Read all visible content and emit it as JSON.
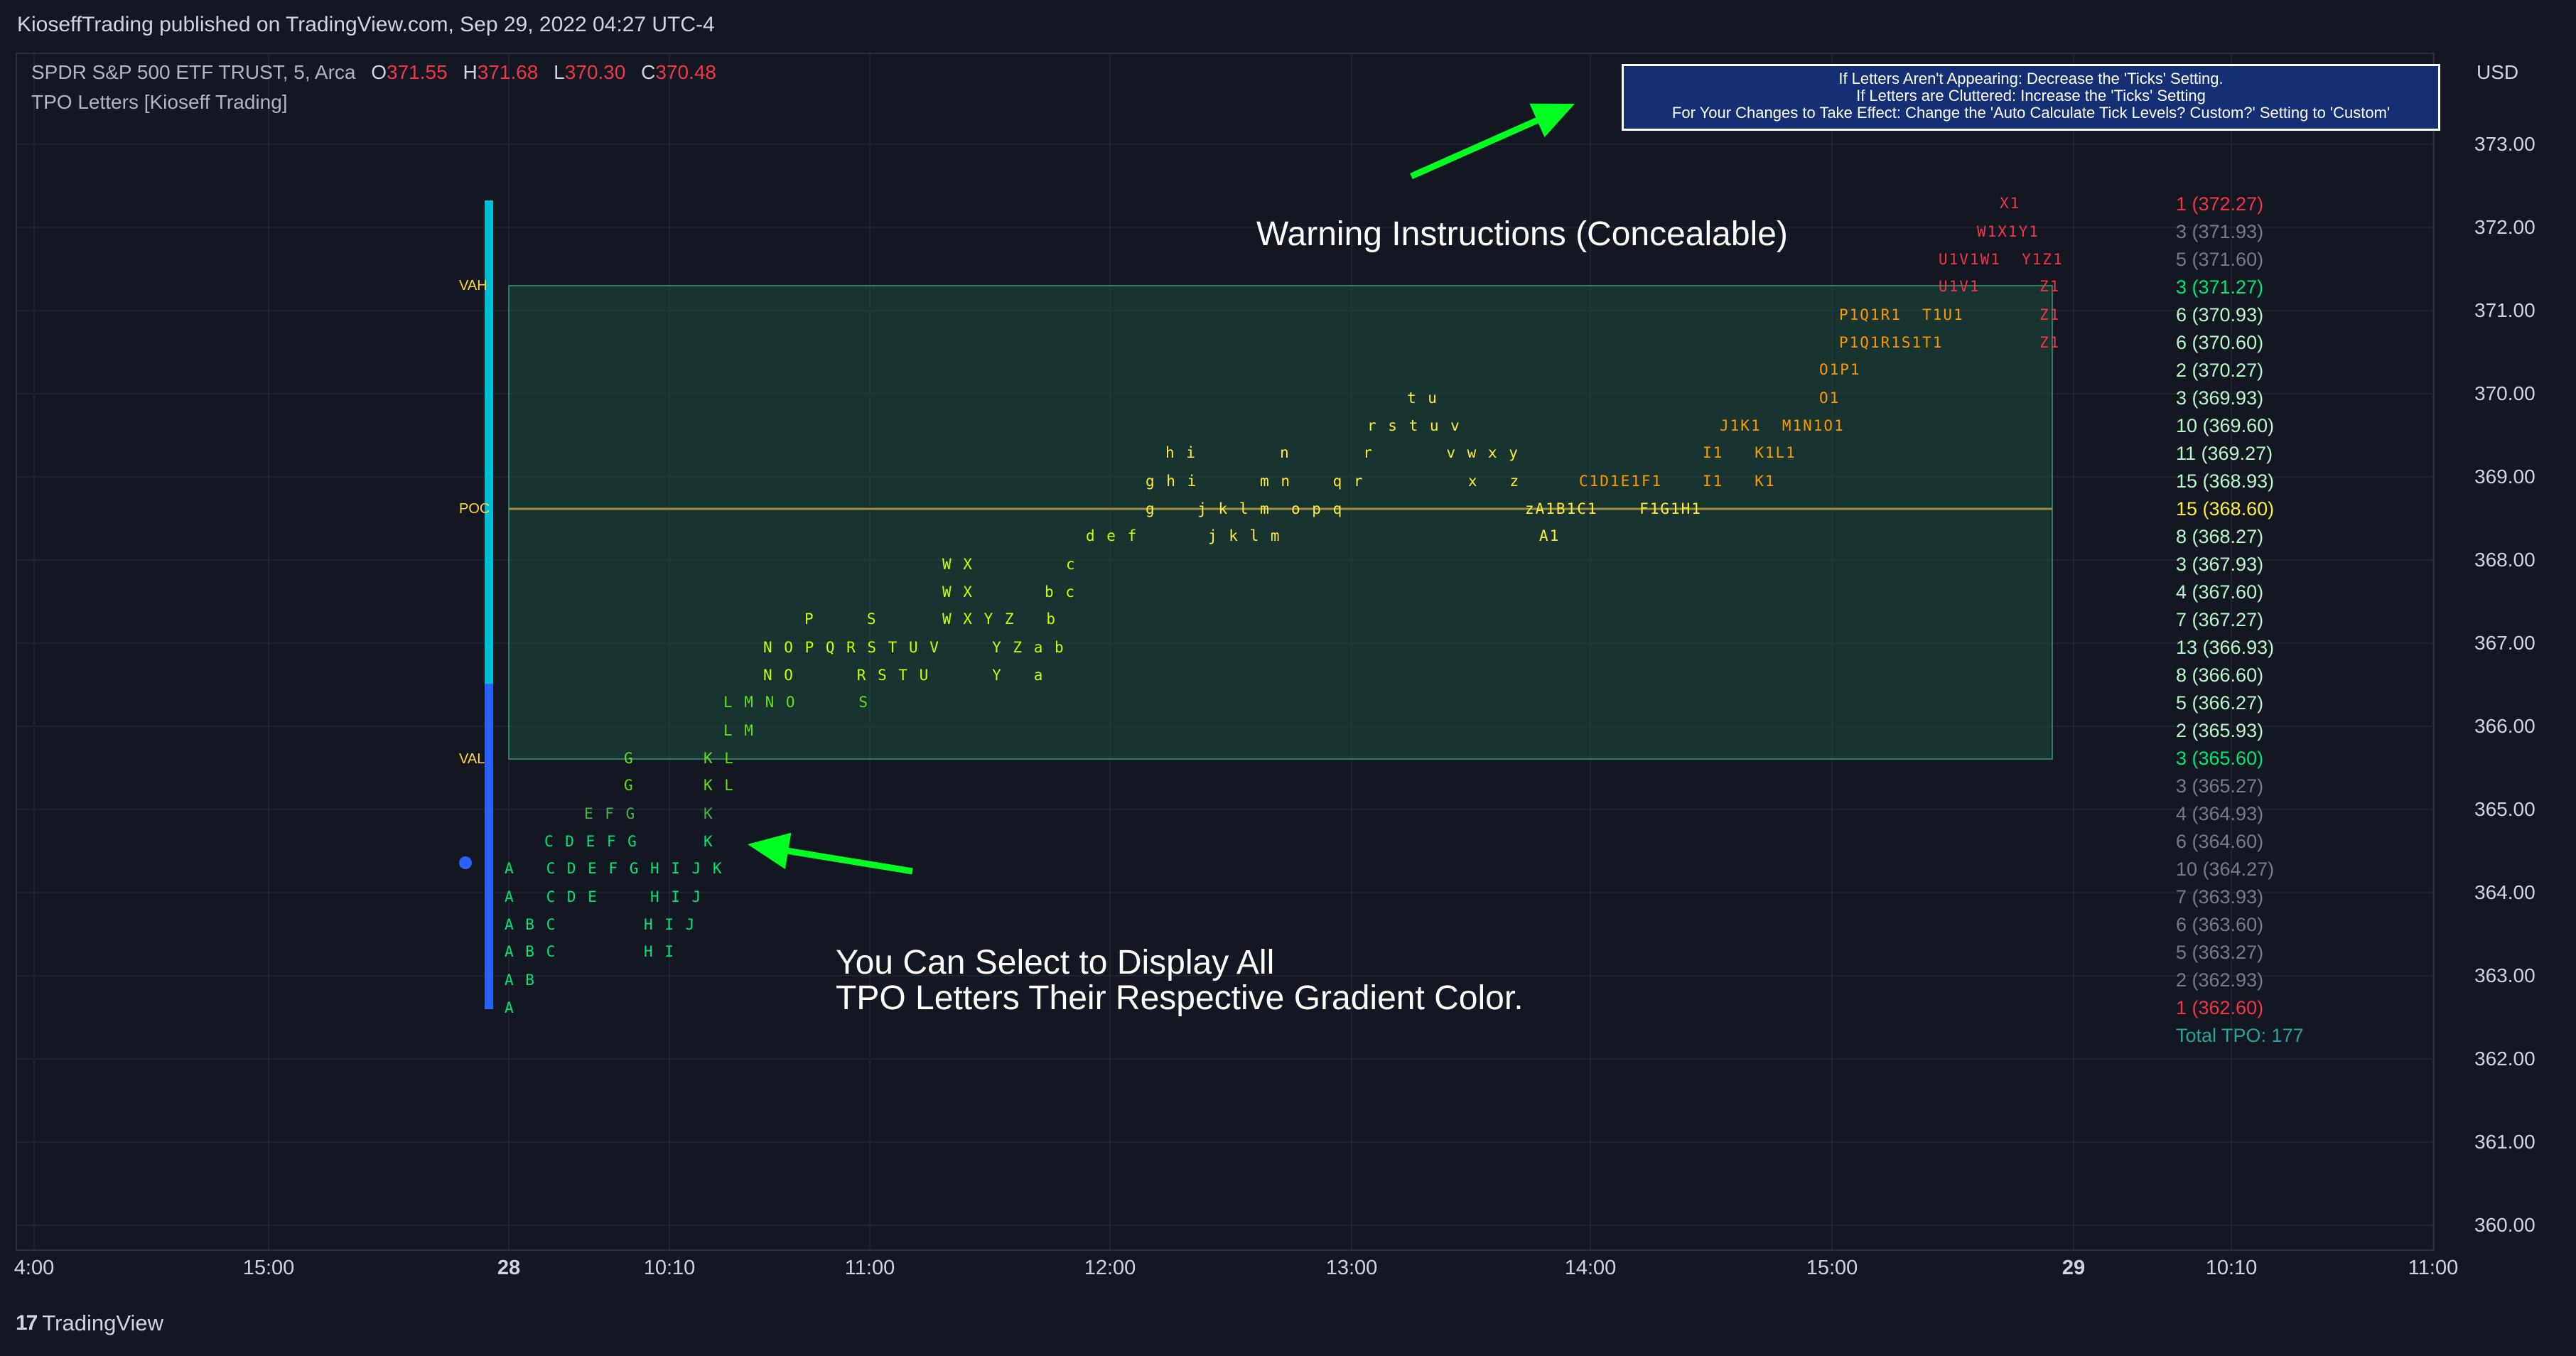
{
  "publish_line": "KioseffTrading published on TradingView.com, Sep 29, 2022 04:27 UTC-4",
  "legend": {
    "symbol_label": "SPDR S&P 500 ETF TRUST, 5, Arca",
    "ohlc": {
      "O": "371.55",
      "H": "371.68",
      "L": "370.30",
      "C": "370.48"
    },
    "indicator": "TPO Letters [Kioseff Trading]"
  },
  "price_axis": {
    "currency": "USD",
    "ticks": [
      "373.00",
      "372.00",
      "371.00",
      "370.00",
      "369.00",
      "368.00",
      "367.00",
      "366.00",
      "365.00",
      "364.00",
      "363.00",
      "362.00",
      "361.00",
      "360.00"
    ]
  },
  "time_axis": {
    "ticks": [
      {
        "label": "4:00",
        "bold": false
      },
      {
        "label": "15:00",
        "bold": false
      },
      {
        "label": "28",
        "bold": true
      },
      {
        "label": "10:10",
        "bold": false
      },
      {
        "label": "11:00",
        "bold": false
      },
      {
        "label": "12:00",
        "bold": false
      },
      {
        "label": "13:00",
        "bold": false
      },
      {
        "label": "14:00",
        "bold": false
      },
      {
        "label": "15:00",
        "bold": false
      },
      {
        "label": "29",
        "bold": true
      },
      {
        "label": "10:10",
        "bold": false
      },
      {
        "label": "11:00",
        "bold": false
      }
    ]
  },
  "warning_box": {
    "lines": [
      "If Letters Aren't Appearing: Decrease the 'Ticks' Setting.",
      "If Letters are Cluttered: Increase the 'Ticks' Setting",
      "For Your Changes to Take Effect: Change the 'Auto Calculate Tick Levels? Custom?' Setting to 'Custom'"
    ]
  },
  "annotations": {
    "warning_caption": "Warning Instructions (Concealable)",
    "gradient_caption_line1": "You Can Select to Display All",
    "gradient_caption_line2": "TPO Letters Their Respective Gradient Color."
  },
  "value_area": {
    "vah_label": "VAH",
    "poc_label": "POC",
    "val_label": "VAL"
  },
  "tpo_levels": [
    {
      "label": "1 (372.27)",
      "color": "#f23645"
    },
    {
      "label": "3 (371.93)",
      "color": "#787b86"
    },
    {
      "label": "5 (371.60)",
      "color": "#787b86"
    },
    {
      "label": "3 (371.27)",
      "color": "#00e676"
    },
    {
      "label": "6 (370.93)",
      "color": "#b9f6ca"
    },
    {
      "label": "6 (370.60)",
      "color": "#b9f6ca"
    },
    {
      "label": "2 (370.27)",
      "color": "#b9f6ca"
    },
    {
      "label": "3 (369.93)",
      "color": "#b9f6ca"
    },
    {
      "label": "10 (369.60)",
      "color": "#b9f6ca"
    },
    {
      "label": "11 (369.27)",
      "color": "#b9f6ca"
    },
    {
      "label": "15 (368.93)",
      "color": "#b9f6ca"
    },
    {
      "label": "15 (368.60)",
      "color": "#ffeb3b"
    },
    {
      "label": "8 (368.27)",
      "color": "#b9f6ca"
    },
    {
      "label": "3 (367.93)",
      "color": "#b9f6ca"
    },
    {
      "label": "4 (367.60)",
      "color": "#b9f6ca"
    },
    {
      "label": "7 (367.27)",
      "color": "#b9f6ca"
    },
    {
      "label": "13 (366.93)",
      "color": "#b9f6ca"
    },
    {
      "label": "8 (366.60)",
      "color": "#b9f6ca"
    },
    {
      "label": "5 (366.27)",
      "color": "#b9f6ca"
    },
    {
      "label": "2 (365.93)",
      "color": "#b9f6ca"
    },
    {
      "label": "3 (365.60)",
      "color": "#00e676"
    },
    {
      "label": "3 (365.27)",
      "color": "#787b86"
    },
    {
      "label": "4 (364.93)",
      "color": "#787b86"
    },
    {
      "label": "6 (364.60)",
      "color": "#787b86"
    },
    {
      "label": "10 (364.27)",
      "color": "#787b86"
    },
    {
      "label": "7 (363.93)",
      "color": "#787b86"
    },
    {
      "label": "6 (363.60)",
      "color": "#787b86"
    },
    {
      "label": "5 (363.27)",
      "color": "#787b86"
    },
    {
      "label": "2 (362.93)",
      "color": "#787b86"
    },
    {
      "label": "1 (362.60)",
      "color": "#f23645"
    }
  ],
  "total_tpo": "Total TPO: 177",
  "tpo_letter_rows": [
    {
      "price": "372.27",
      "groups": [
        {
          "text": "X1",
          "color": "#f23645"
        }
      ]
    },
    {
      "price": "371.93",
      "groups": [
        {
          "text": "W1X1Y1",
          "color": "#f23645"
        }
      ]
    },
    {
      "price": "371.60",
      "groups": [
        {
          "text": "U1V1W1  Y1Z1",
          "color": "#f23645"
        }
      ]
    },
    {
      "price": "371.27",
      "groups": [
        {
          "text": "U1V1",
          "color": "#f23645"
        },
        {
          "text": "Z1",
          "color": "#f23645"
        }
      ]
    },
    {
      "price": "370.93",
      "groups": [
        {
          "text": "P1Q1R1  T1U1",
          "color": "#ff9800"
        },
        {
          "text": "Z1",
          "color": "#f23645"
        }
      ]
    },
    {
      "price": "370.60",
      "groups": [
        {
          "text": "P1Q1R1S1T1",
          "color": "#ff9800"
        },
        {
          "text": "Z1",
          "color": "#f23645"
        }
      ]
    },
    {
      "price": "370.27",
      "groups": [
        {
          "text": "O1P1",
          "color": "#ff9800"
        }
      ]
    },
    {
      "price": "369.93",
      "groups": [
        {
          "text": "t u",
          "color": "#ffeb3b"
        },
        {
          "text": "O1",
          "color": "#ff9800"
        }
      ]
    },
    {
      "price": "369.60",
      "groups": [
        {
          "text": "r s t u v",
          "color": "#ffeb3b"
        },
        {
          "text": "J1K1  M1N1O1",
          "color": "#ff9800"
        }
      ]
    },
    {
      "price": "369.27",
      "groups": [
        {
          "text": "h i        n       r       v w x y",
          "color": "#ffeb3b"
        },
        {
          "text": "I1   K1L1",
          "color": "#ff9800"
        }
      ]
    },
    {
      "price": "368.93",
      "groups": [
        {
          "text": "g h i      m n    q r          x   z",
          "color": "#ffeb3b"
        },
        {
          "text": "C1D1E1F1",
          "color": "#ff9800"
        },
        {
          "text": "I1   K1",
          "color": "#ff9800"
        }
      ]
    },
    {
      "price": "368.60",
      "groups": [
        {
          "text": "g    j k l m  o p q",
          "color": "#ffeb3b"
        },
        {
          "text": "zA1B1C1    F1G1H1",
          "color": "#ffeb3b"
        }
      ]
    },
    {
      "price": "368.27",
      "groups": [
        {
          "text": "d e f",
          "color": "#c6ff00"
        },
        {
          "text": "j k l m",
          "color": "#ffeb3b"
        },
        {
          "text": "A1",
          "color": "#ffeb3b"
        }
      ]
    },
    {
      "price": "367.93",
      "groups": [
        {
          "text": "W X",
          "color": "#c6ff00"
        },
        {
          "text": "c",
          "color": "#c6ff00"
        }
      ]
    },
    {
      "price": "367.60",
      "groups": [
        {
          "text": "W X",
          "color": "#c6ff00"
        },
        {
          "text": "b c",
          "color": "#c6ff00"
        }
      ]
    },
    {
      "price": "367.27",
      "groups": [
        {
          "text": "P     S",
          "color": "#c6ff00"
        },
        {
          "text": "W X Y Z   b",
          "color": "#c6ff00"
        }
      ]
    },
    {
      "price": "366.93",
      "groups": [
        {
          "text": "N O P Q R S T U V     Y Z a b",
          "color": "#c6ff00"
        }
      ]
    },
    {
      "price": "366.60",
      "groups": [
        {
          "text": "N O      R S T U      Y   a",
          "color": "#c6ff00"
        }
      ]
    },
    {
      "price": "366.27",
      "groups": [
        {
          "text": "L M N O      S",
          "color": "#64dd17"
        }
      ]
    },
    {
      "price": "365.93",
      "groups": [
        {
          "text": "L M",
          "color": "#64dd17"
        }
      ]
    },
    {
      "price": "365.60",
      "groups": [
        {
          "text": "G",
          "color": "#64dd17"
        },
        {
          "text": "K L",
          "color": "#64dd17"
        }
      ]
    },
    {
      "price": "365.27",
      "groups": [
        {
          "text": "G",
          "color": "#64dd17"
        },
        {
          "text": "K L",
          "color": "#64dd17"
        }
      ]
    },
    {
      "price": "364.93",
      "groups": [
        {
          "text": "E F G",
          "color": "#4caf50"
        },
        {
          "text": "K",
          "color": "#4caf50"
        }
      ]
    },
    {
      "price": "364.60",
      "groups": [
        {
          "text": "C D E F G",
          "color": "#00e676"
        },
        {
          "text": "K",
          "color": "#00e676"
        }
      ]
    },
    {
      "price": "364.27",
      "groups": [
        {
          "text": "A   C D E F G H I J K",
          "color": "#00e676"
        }
      ]
    },
    {
      "price": "363.93",
      "groups": [
        {
          "text": "A   C D E     H I J",
          "color": "#00e676"
        }
      ]
    },
    {
      "price": "363.60",
      "groups": [
        {
          "text": "A B C",
          "color": "#00e676"
        },
        {
          "text": "H I J",
          "color": "#00e676"
        }
      ]
    },
    {
      "price": "363.27",
      "groups": [
        {
          "text": "A B C",
          "color": "#00e676"
        },
        {
          "text": "H I",
          "color": "#00e676"
        }
      ]
    },
    {
      "price": "362.93",
      "groups": [
        {
          "text": "A B",
          "color": "#00e676"
        }
      ]
    },
    {
      "price": "362.60",
      "groups": [
        {
          "text": "A",
          "color": "#00e676"
        }
      ]
    }
  ],
  "colors": {
    "background": "#131722",
    "value_area_fill": "#1e4c3e",
    "value_area_border": "#2e7d62",
    "poc_line": "#9e8c3d",
    "vah_bar": "#00bcd4",
    "val_bar": "#2962ff",
    "arrow": "#00ff21"
  },
  "footer": {
    "brand": "TradingView",
    "logo_glyph": "17"
  }
}
